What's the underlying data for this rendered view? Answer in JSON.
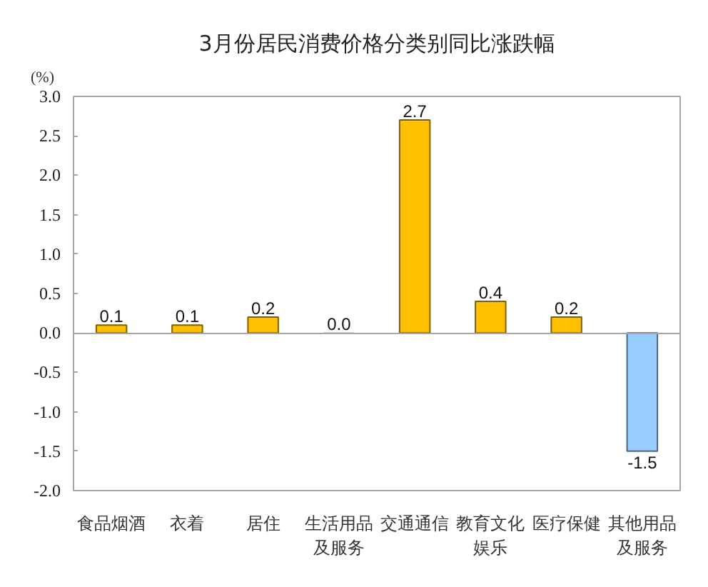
{
  "chart_data": {
    "type": "bar",
    "title": "3月份居民消费价格分类别同比涨跌幅",
    "ylabel": "(%)",
    "categories": [
      "食品烟酒",
      "衣着",
      "居住",
      "生活用品及服务",
      "交通通信",
      "教育文化娱乐",
      "医疗保健",
      "其他用品及服务"
    ],
    "values": [
      0.1,
      0.1,
      0.2,
      0.0,
      2.7,
      0.4,
      0.2,
      -1.5
    ],
    "value_labels": [
      "0.1",
      "0.1",
      "0.2",
      "0.0",
      "2.7",
      "0.4",
      "0.2",
      "-1.5"
    ],
    "colors": [
      "#ffc000",
      "#ffc000",
      "#ffc000",
      "#ffc000",
      "#ffc000",
      "#ffc000",
      "#ffc000",
      "#99ccff"
    ],
    "ylim": [
      -2,
      3
    ],
    "yticks": [
      {
        "value": -2,
        "label": "-2.0"
      },
      {
        "value": -1.5,
        "label": "-1.5"
      },
      {
        "value": -1,
        "label": "-1.0"
      },
      {
        "value": -0.5,
        "label": "-0.5"
      },
      {
        "value": 0,
        "label": "0.0"
      },
      {
        "value": 0.5,
        "label": "0.5"
      },
      {
        "value": 1,
        "label": "1.0"
      },
      {
        "value": 1.5,
        "label": "1.5"
      },
      {
        "value": 2,
        "label": "2.0"
      },
      {
        "value": 2.5,
        "label": "2.5"
      },
      {
        "value": 3,
        "label": "3.0"
      }
    ]
  }
}
